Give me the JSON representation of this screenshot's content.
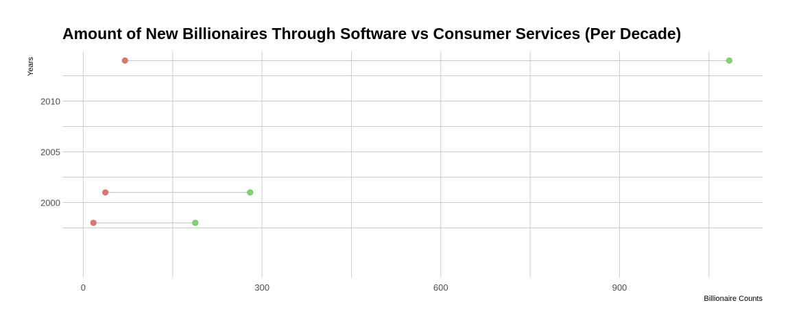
{
  "chart_data": {
    "type": "dumbbell",
    "title": "Amount of New Billionaires Through Software vs Consumer Services (Per Decade)",
    "xlabel": "Billionaire Counts",
    "ylabel": "Years",
    "xlim": [
      -35,
      1140
    ],
    "ylim": [
      1992.6,
      2014.9
    ],
    "x_ticks": [
      0,
      300,
      600,
      900
    ],
    "y_ticks": [
      2000,
      2005,
      2010
    ],
    "grid": true,
    "colors": {
      "left_point": "#d9796a",
      "right_point": "#7fd46f",
      "segment": "#bebebe",
      "grid": "#cccccc"
    },
    "rows": [
      {
        "year": 1998,
        "left": 17,
        "right": 188
      },
      {
        "year": 2001,
        "left": 37,
        "right": 280
      },
      {
        "year": 2014,
        "left": 70,
        "right": 1084
      }
    ]
  }
}
